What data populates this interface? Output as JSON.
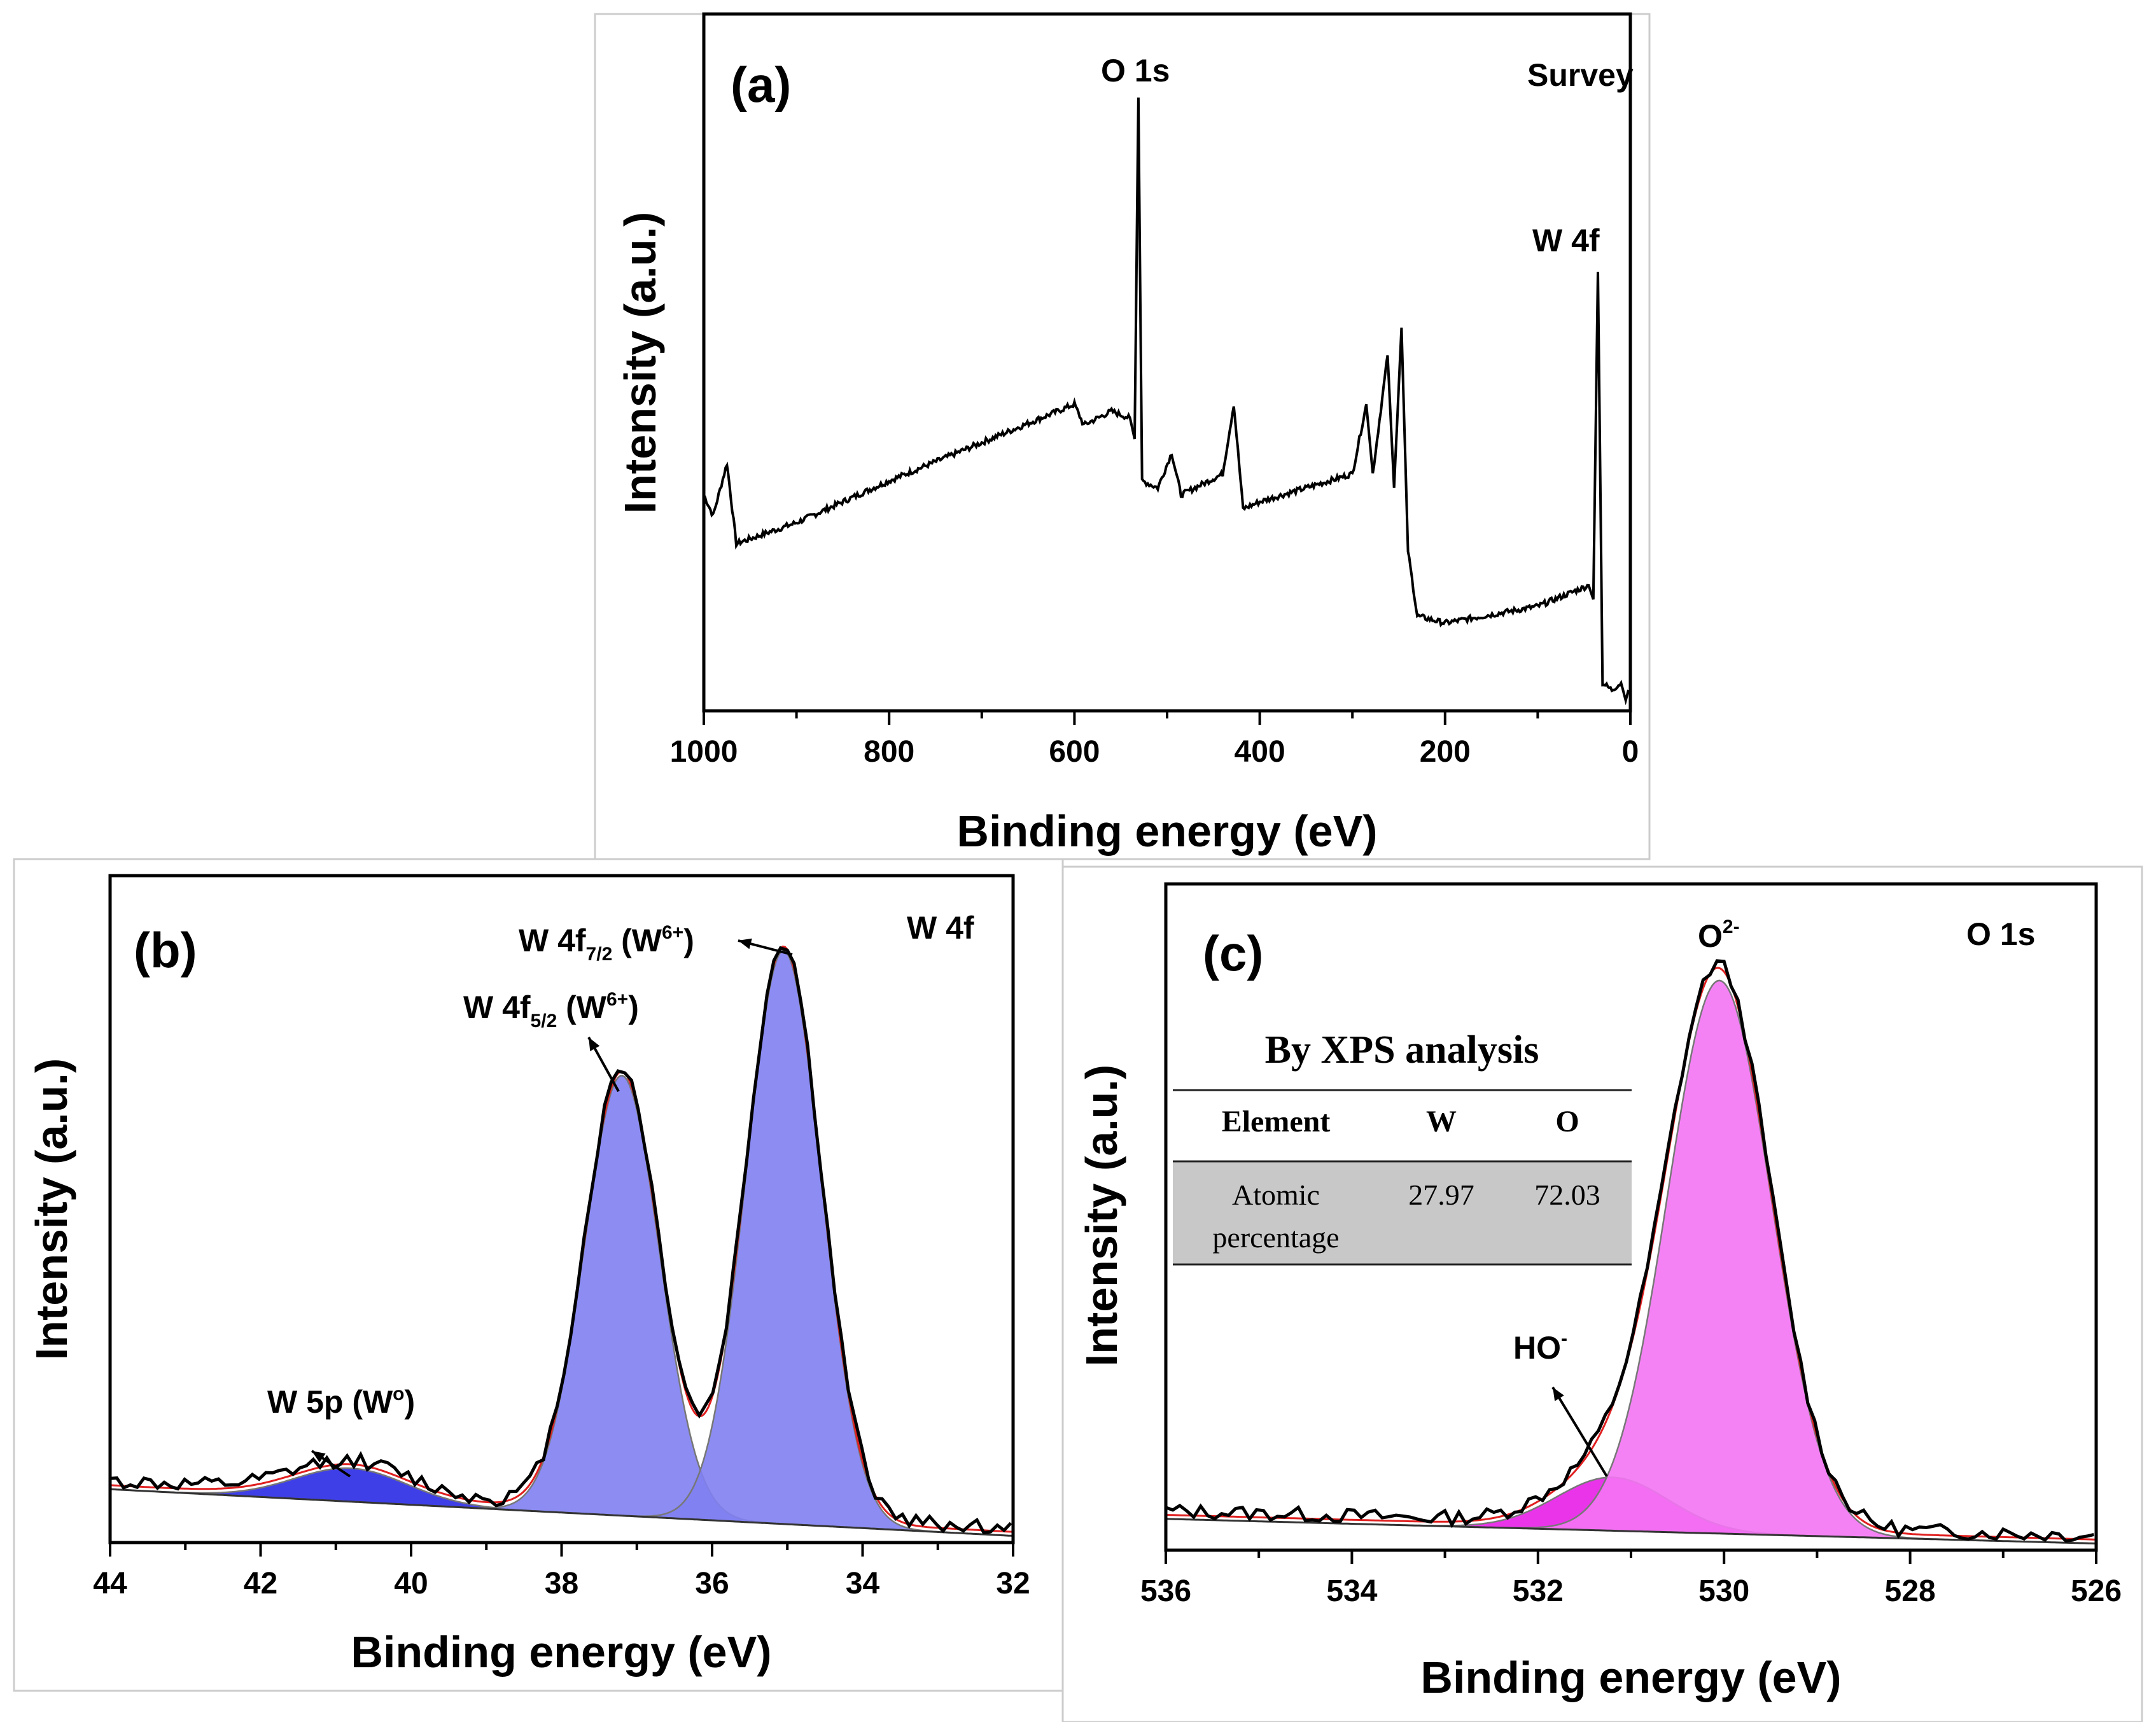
{
  "chart_data": [
    {
      "panel": "(a)",
      "type": "line",
      "title": "Survey",
      "xlabel": "Binding energy (eV)",
      "ylabel": "Intensity (a.u.)",
      "xlim": [
        1000,
        0
      ],
      "ylim": [
        0,
        100
      ],
      "xticks": [
        1000,
        800,
        600,
        400,
        200,
        0
      ],
      "annotations": [
        {
          "text": "O 1s",
          "x": 531
        },
        {
          "text": "W 4f",
          "x": 35
        }
      ],
      "series": [
        {
          "name": "Survey spectrum",
          "points": [
            [
              1000,
              31
            ],
            [
              990,
              28
            ],
            [
              975,
              35.5
            ],
            [
              965,
              24
            ],
            [
              900,
              27
            ],
            [
              800,
              33
            ],
            [
              700,
              38.5
            ],
            [
              600,
              44
            ],
            [
              590,
              41
            ],
            [
              560,
              43
            ],
            [
              540,
              42
            ],
            [
              535,
              39
            ],
            [
              531,
              88
            ],
            [
              527,
              33
            ],
            [
              510,
              32
            ],
            [
              495,
              37
            ],
            [
              485,
              31
            ],
            [
              440,
              34
            ],
            [
              428,
              44
            ],
            [
              418,
              29
            ],
            [
              400,
              30
            ],
            [
              300,
              34
            ],
            [
              285,
              44
            ],
            [
              278,
              34
            ],
            [
              262,
              51
            ],
            [
              255,
              32
            ],
            [
              247,
              55
            ],
            [
              240,
              23
            ],
            [
              230,
              13.6
            ],
            [
              200,
              12.6
            ],
            [
              100,
              15
            ],
            [
              45,
              18
            ],
            [
              40,
              16
            ],
            [
              35,
              63
            ],
            [
              30,
              4
            ],
            [
              20,
              3
            ],
            [
              10,
              4
            ],
            [
              5,
              1.5
            ],
            [
              2,
              3
            ]
          ]
        }
      ]
    },
    {
      "panel": "(b)",
      "type": "area",
      "title": "W 4f",
      "xlabel": "Binding energy (eV)",
      "ylabel": "Intensity (a.u.)",
      "xlim": [
        44,
        32
      ],
      "ylim": [
        0,
        100
      ],
      "xticks": [
        44,
        42,
        40,
        38,
        36,
        34,
        32
      ],
      "background": {
        "start": [
          44,
          8
        ],
        "end": [
          32,
          1
        ]
      },
      "components": [
        {
          "name": "W 5p (W0)",
          "center": 40.8,
          "height": 5,
          "sigma": 0.75,
          "color": "#2a2ae6"
        },
        {
          "name": "W 4f5/2 (W6+)",
          "center": 37.2,
          "height": 66,
          "sigma": 0.5,
          "color": "#7f7ff2"
        },
        {
          "name": "W 4f7/2 (W6+)",
          "center": 35.05,
          "height": 86,
          "sigma": 0.5,
          "color": "#7f7ff2"
        }
      ],
      "labels": {
        "w5p": {
          "main": "W 5p (W",
          "sup": "o",
          "end": ")"
        },
        "f52": {
          "main": "W 4f",
          "sub": "5/2",
          "mid": " (W",
          "sup": "6+",
          "end": ")"
        },
        "f72": {
          "main": "W 4f",
          "sub": "7/2",
          "mid": " (W",
          "sup": "6+",
          "end": ")"
        }
      }
    },
    {
      "panel": "(c)",
      "type": "area",
      "title": "O 1s",
      "xlabel": "Binding energy (eV)",
      "ylabel": "Intensity (a.u.)",
      "xlim": [
        536,
        526
      ],
      "ylim": [
        0,
        100
      ],
      "xticks": [
        536,
        534,
        532,
        530,
        528,
        526
      ],
      "background": {
        "start": [
          536,
          4.7
        ],
        "end": [
          526,
          1
        ]
      },
      "components": [
        {
          "name": "HO-",
          "center": 531.2,
          "height": 8,
          "sigma": 0.6,
          "color": "#e81ee8"
        },
        {
          "name": "O2-",
          "center": 530.05,
          "height": 83,
          "sigma": 0.56,
          "color": "#f474f4"
        }
      ],
      "labels": {
        "o2": {
          "main": "O",
          "sup": "2-"
        },
        "ho": {
          "main": "HO",
          "sup": "-"
        }
      },
      "table": {
        "title": "By XPS analysis",
        "headers": [
          "Element",
          "W",
          "O"
        ],
        "row_label_1": "Atomic",
        "row_label_2": "percentage",
        "values": [
          "27.97",
          "72.03"
        ]
      }
    }
  ],
  "colors": {
    "fit": "#e02020",
    "data": "#000000",
    "component_edge": "#777777"
  }
}
